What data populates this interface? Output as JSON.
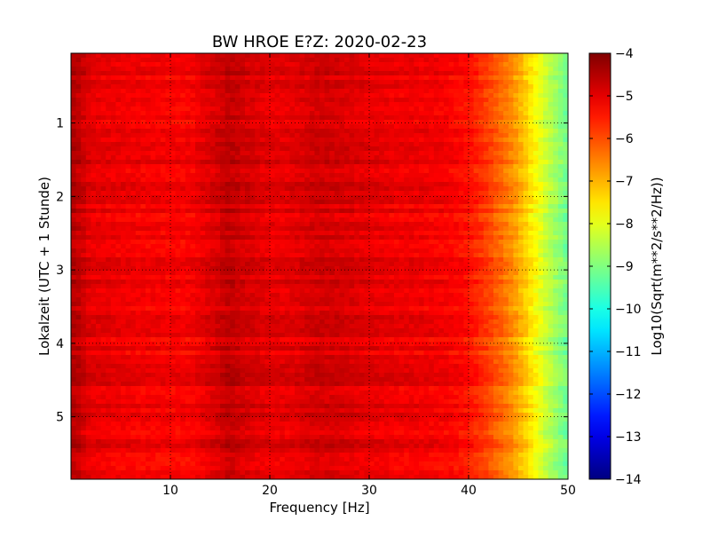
{
  "chart_data": {
    "type": "heatmap",
    "title": "BW HROE E?Z: 2020-02-23",
    "xlabel": "Frequency [Hz]",
    "ylabel": "Lokalzeit (UTC + 1 Stunde)",
    "xlim": [
      0,
      50
    ],
    "ylim": [
      5.85,
      0.05
    ],
    "y_inverted": true,
    "x_ticks": [
      10,
      20,
      30,
      40,
      50
    ],
    "x_tick_labels": [
      "10",
      "20",
      "30",
      "40",
      "50"
    ],
    "y_ticks": [
      1,
      2,
      3,
      4,
      5
    ],
    "y_tick_labels": [
      "1",
      "2",
      "3",
      "4",
      "5"
    ],
    "grid": true,
    "grid_style": "dotted",
    "colormap": "jet",
    "colorbar": {
      "label": "Log10(Sqrt(m**2/s**2/Hz))",
      "range": [
        -14,
        -4
      ],
      "ticks": [
        -4,
        -5,
        -6,
        -7,
        -8,
        -9,
        -10,
        -11,
        -12,
        -13,
        -14
      ],
      "tick_labels": [
        "−4",
        "−5",
        "−6",
        "−7",
        "−8",
        "−9",
        "−10",
        "−11",
        "−12",
        "−13",
        "−14"
      ]
    },
    "frequency_profile": {
      "x": [
        0,
        1,
        2,
        5,
        10,
        12,
        15,
        16,
        17,
        20,
        22,
        25,
        28,
        30,
        33,
        35,
        38,
        40,
        42,
        44,
        45,
        46,
        47,
        48,
        49,
        50
      ],
      "y": [
        -4.5,
        -4.7,
        -5.0,
        -5.1,
        -5.2,
        -5.2,
        -4.8,
        -4.6,
        -4.8,
        -5.0,
        -5.0,
        -4.8,
        -4.9,
        -5.0,
        -5.1,
        -5.1,
        -5.2,
        -5.4,
        -5.9,
        -6.5,
        -6.9,
        -7.4,
        -7.9,
        -8.4,
        -8.8,
        -9.2
      ]
    }
  }
}
